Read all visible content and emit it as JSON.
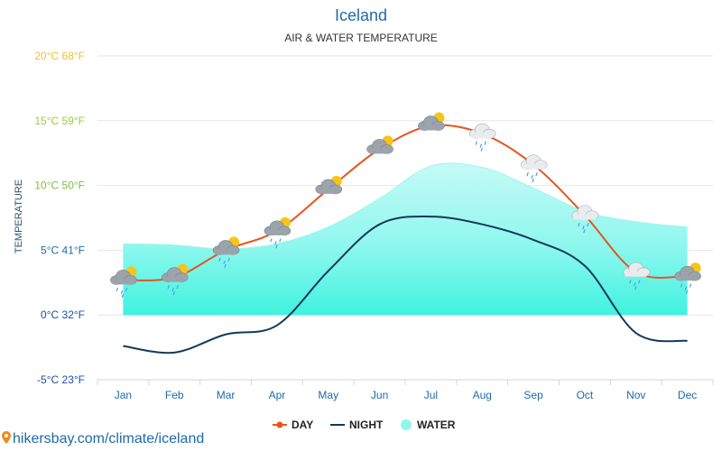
{
  "chart_data": {
    "type": "line",
    "title": "Iceland",
    "subtitle": "AIR & WATER TEMPERATURE",
    "ylabel": "TEMPERATURE",
    "categories": [
      "Jan",
      "Feb",
      "Mar",
      "Apr",
      "May",
      "Jun",
      "Jul",
      "Aug",
      "Sep",
      "Oct",
      "Nov",
      "Dec"
    ],
    "ylim": [
      -5,
      20
    ],
    "yticks": [
      {
        "value": -5,
        "label": "-5°C 23°F",
        "color": "#1e4fa8"
      },
      {
        "value": 0,
        "label": "0°C 32°F",
        "color": "#1e4fa8"
      },
      {
        "value": 5,
        "label": "5°C 41°F",
        "color": "#1e6aa8"
      },
      {
        "value": 10,
        "label": "10°C 50°F",
        "color": "#7bc142"
      },
      {
        "value": 15,
        "label": "15°C 59°F",
        "color": "#9ccc3c"
      },
      {
        "value": 20,
        "label": "20°C 68°F",
        "color": "#e8c23a"
      }
    ],
    "grid": true,
    "legend_position": "bottom",
    "series": [
      {
        "name": "DAY",
        "color": "#e8541c",
        "values": [
          2.7,
          2.9,
          5.0,
          6.5,
          9.7,
          12.8,
          14.6,
          14.0,
          11.6,
          7.7,
          3.3,
          3.0
        ]
      },
      {
        "name": "NIGHT",
        "color": "#123a5c",
        "values": [
          -2.4,
          -2.9,
          -1.5,
          -0.8,
          3.4,
          7.0,
          7.6,
          7.0,
          5.8,
          3.8,
          -1.4,
          -2.0
        ]
      },
      {
        "name": "WATER",
        "color": "#66f4e6",
        "values": [
          5.5,
          5.4,
          5.1,
          5.5,
          6.8,
          9.0,
          11.5,
          11.4,
          9.8,
          8.0,
          7.2,
          6.8
        ]
      }
    ],
    "weather_icons": [
      "sun-cloud-rain",
      "sun-cloud-rain",
      "sun-cloud-rain",
      "sun-cloud-rain",
      "sun-cloud",
      "sun-cloud",
      "sun-cloud",
      "cloud-rain",
      "cloud-rain",
      "cloud-rain",
      "cloud-rain",
      "sun-cloud-rain"
    ]
  },
  "legend": {
    "day": "DAY",
    "night": "NIGHT",
    "water": "WATER"
  },
  "footer": {
    "source": "hikersbay.com/climate/iceland"
  }
}
